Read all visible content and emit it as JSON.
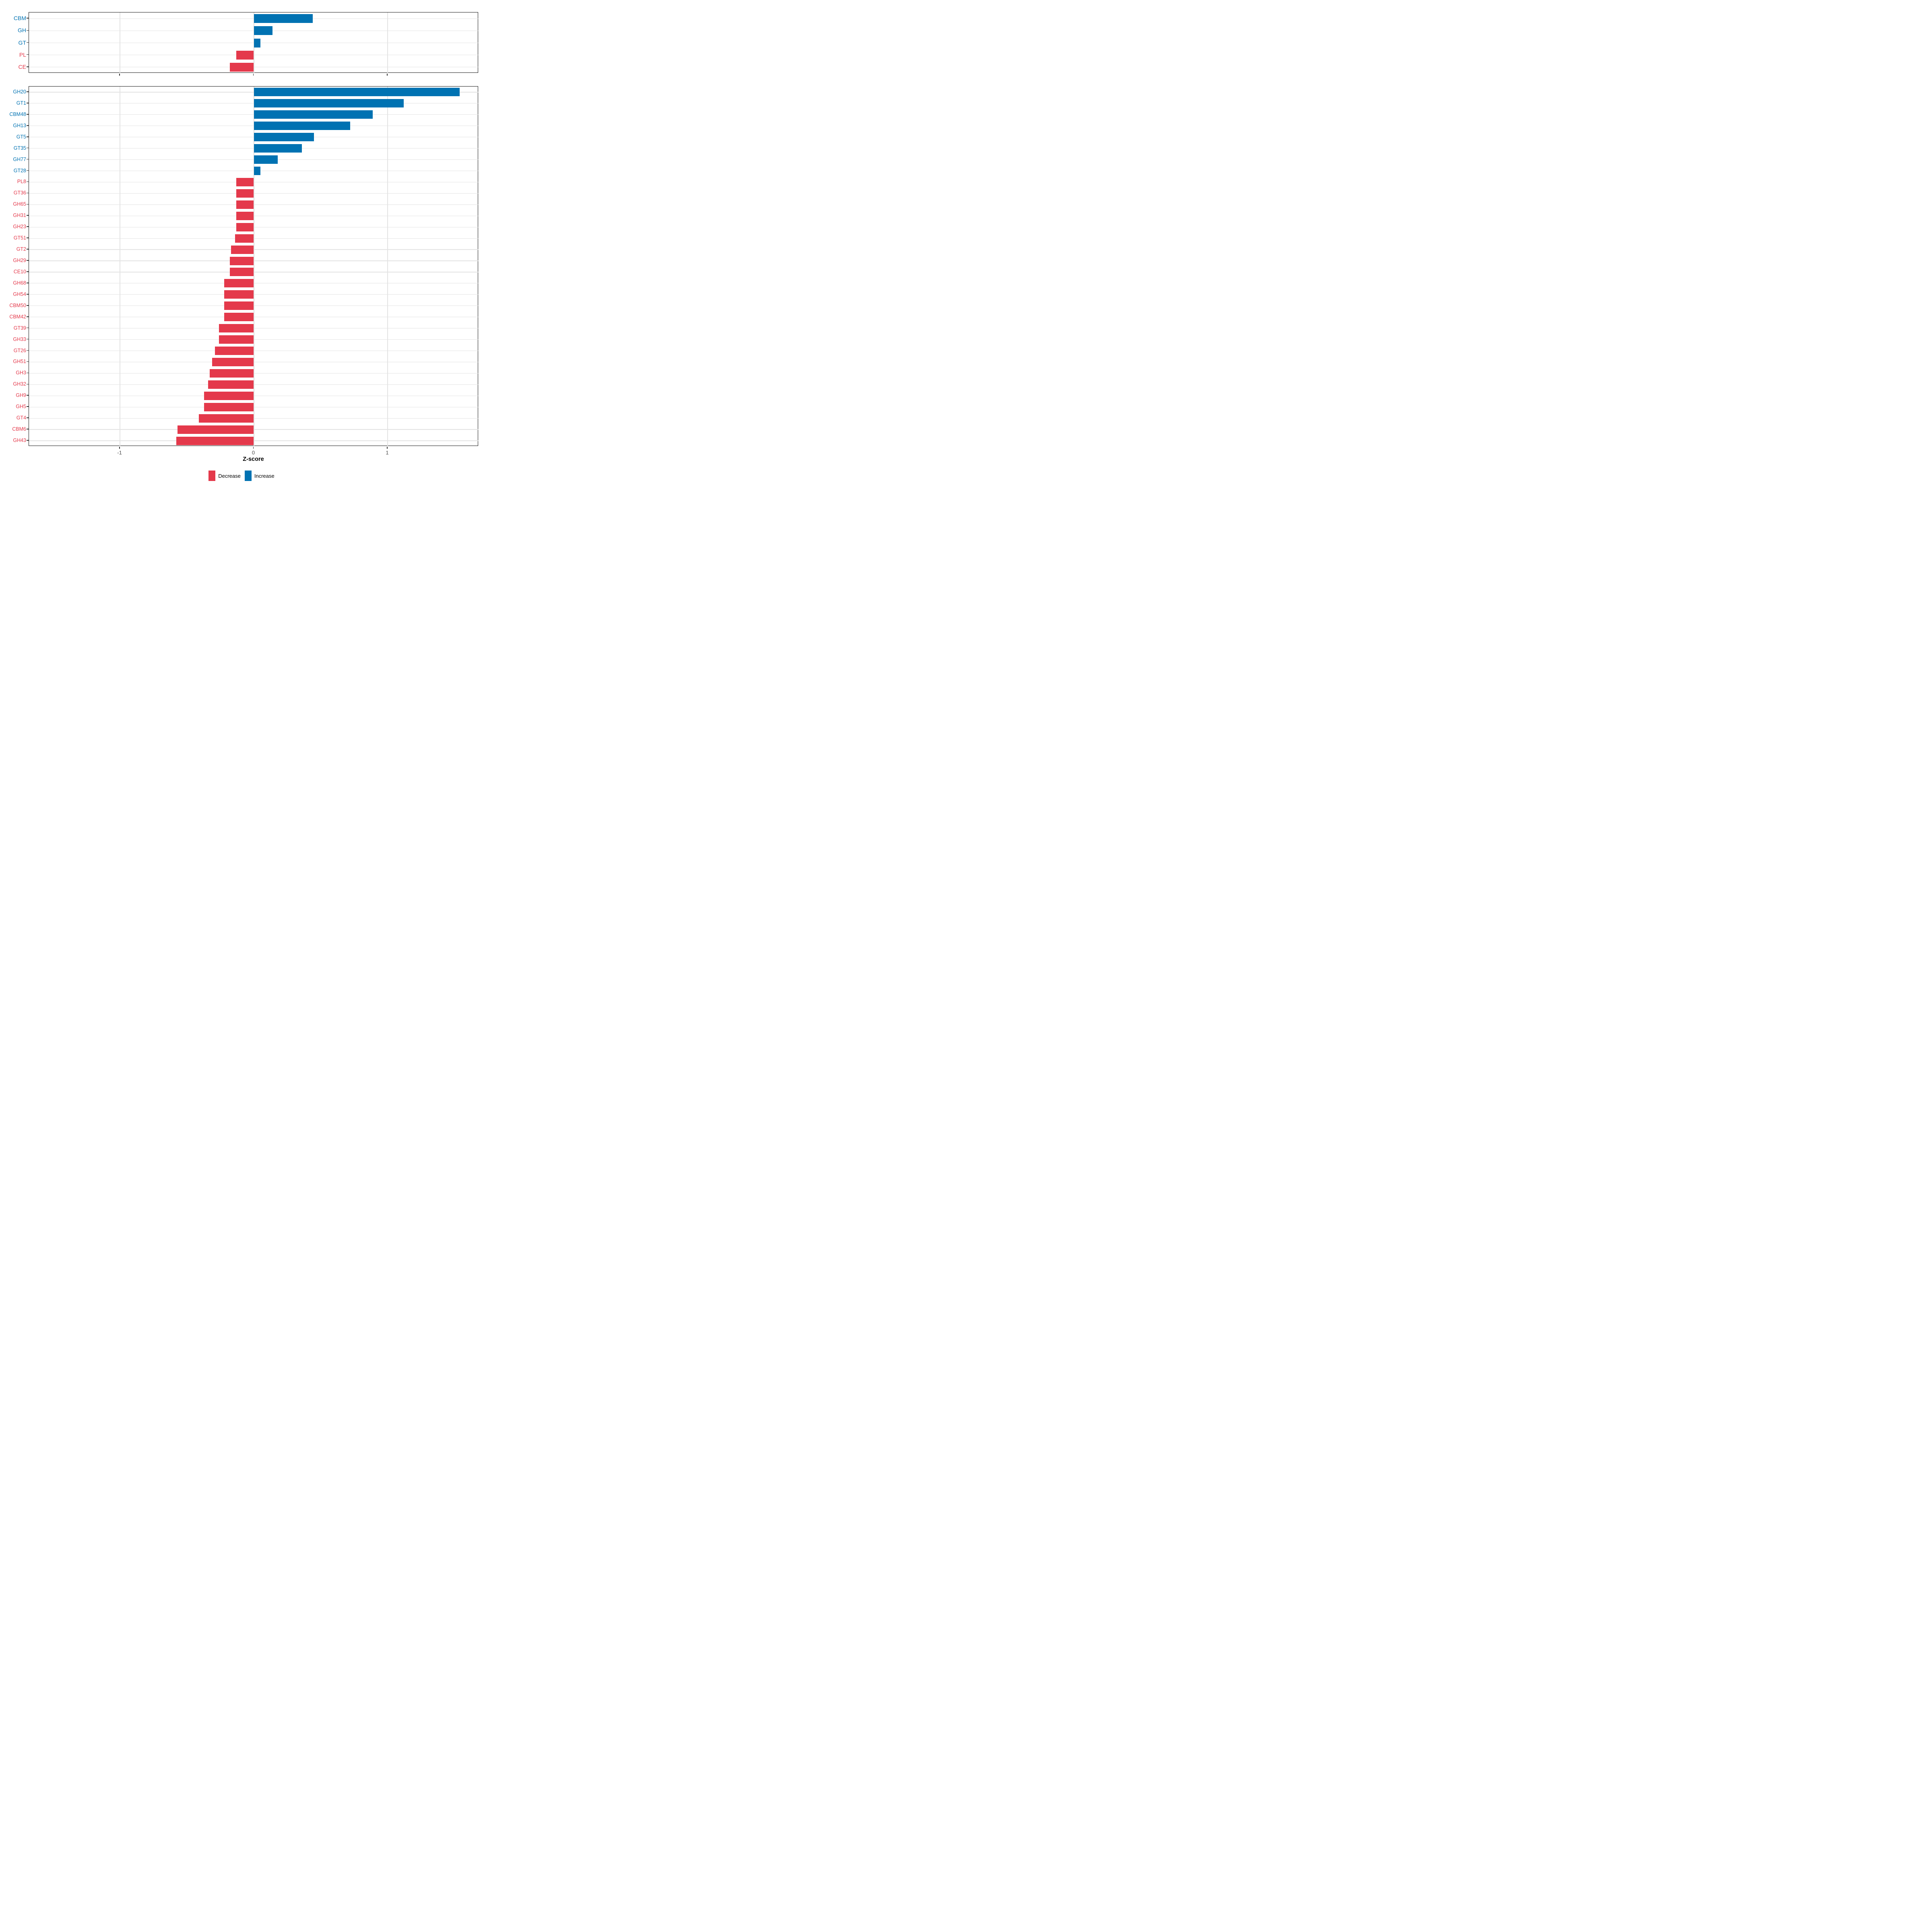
{
  "chart_data": [
    {
      "type": "bar",
      "orientation": "horizontal",
      "panel": "cazyme-class",
      "categories": [
        "CBM",
        "GH",
        "GT",
        "PL",
        "CE"
      ],
      "values": [
        0.44,
        0.14,
        0.05,
        -0.13,
        -0.18
      ],
      "xlim": [
        -1.68,
        1.68
      ],
      "xticks": [
        -1,
        0,
        1
      ],
      "xlabel": "",
      "grid": true,
      "bar_color_rule": "sign: positive=increase(blue), negative=decrease(red)"
    },
    {
      "type": "bar",
      "orientation": "horizontal",
      "panel": "cazyme-family",
      "categories": [
        "GH20",
        "GT1",
        "CBM48",
        "GH13",
        "GT5",
        "GT35",
        "GH77",
        "GT28",
        "PL8",
        "GT36",
        "GH65",
        "GH31",
        "GH23",
        "GT51",
        "GT2",
        "GH29",
        "CE10",
        "GH68",
        "GH54",
        "CBM50",
        "CBM42",
        "GT39",
        "GH33",
        "GT26",
        "GH51",
        "GH3",
        "GH32",
        "GH9",
        "GH5",
        "GT4",
        "CBM6",
        "GH43"
      ],
      "values": [
        1.54,
        1.12,
        0.89,
        0.72,
        0.45,
        0.36,
        0.18,
        0.05,
        -0.13,
        -0.13,
        -0.13,
        -0.13,
        -0.13,
        -0.14,
        -0.17,
        -0.18,
        -0.18,
        -0.22,
        -0.22,
        -0.22,
        -0.22,
        -0.26,
        -0.26,
        -0.29,
        -0.31,
        -0.33,
        -0.34,
        -0.37,
        -0.37,
        -0.41,
        -0.57,
        -0.58
      ],
      "xlim": [
        -1.68,
        1.68
      ],
      "xticks": [
        -1,
        0,
        1
      ],
      "xlabel": "Z-score",
      "grid": true,
      "bar_color_rule": "sign: positive=increase(blue), negative=decrease(red)"
    }
  ],
  "axis": {
    "x_tick_labels": [
      "-1",
      "0",
      "1"
    ],
    "x_title": "Z-score"
  },
  "legend": {
    "position": "bottom-center",
    "items": [
      {
        "label": "Decrease",
        "color": "#E4394B"
      },
      {
        "label": "Increase",
        "color": "#0072B2"
      }
    ]
  },
  "colors": {
    "increase": "#0072B2",
    "decrease": "#E4394B",
    "grid": "#E3E3E3",
    "axis_text": "#4D4D4D",
    "panel_border": "#1A1A1A",
    "tick": "#333333",
    "background": "#FFFFFF"
  }
}
